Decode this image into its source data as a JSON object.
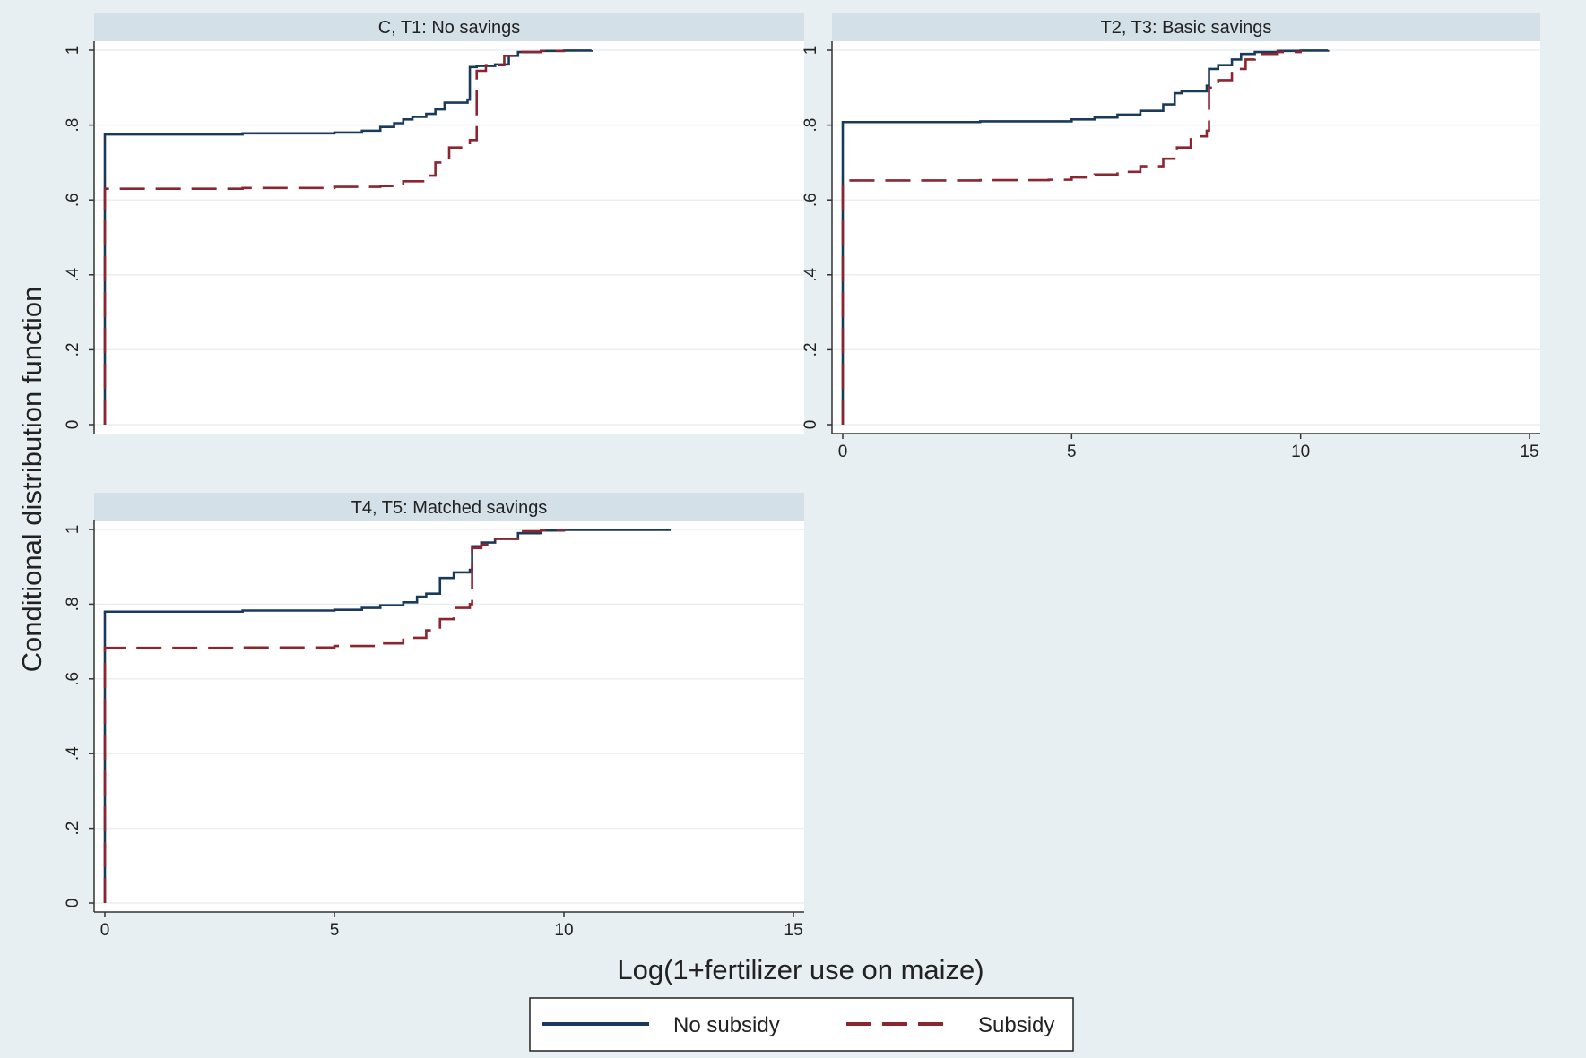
{
  "chart_data": {
    "type": "line",
    "subtype": "step-cdf",
    "ylabel": "Conditional distribution function",
    "xlabel": "Log(1+fertilizer use on maize)",
    "xlim": [
      0,
      15
    ],
    "ylim": [
      0,
      1
    ],
    "xticks": [
      0,
      5,
      10,
      15
    ],
    "yticks": [
      0,
      0.2,
      0.4,
      0.6,
      0.8,
      1
    ],
    "ytick_labels": [
      "0",
      ".2",
      ".4",
      ".6",
      ".8",
      "1"
    ],
    "grid": true,
    "legend_position": "bottom",
    "legend": [
      {
        "label": "No subsidy",
        "color": "#1a3a5c",
        "dash": "solid"
      },
      {
        "label": "Subsidy",
        "color": "#8b2530",
        "dash": "long-dash"
      }
    ],
    "panels": [
      {
        "title": "C, T1: No savings",
        "show_x_ticks": false,
        "series": [
          {
            "name": "No subsidy",
            "x": [
              0,
              0,
              3,
              5,
              5.6,
              6,
              6.3,
              6.5,
              6.7,
              7.0,
              7.2,
              7.4,
              7.9,
              7.95,
              8.1,
              8.5,
              8.8,
              9.0,
              9.5,
              10.0,
              10.6
            ],
            "y": [
              0,
              0.775,
              0.778,
              0.78,
              0.785,
              0.795,
              0.805,
              0.815,
              0.822,
              0.83,
              0.842,
              0.86,
              0.868,
              0.955,
              0.958,
              0.962,
              0.985,
              0.995,
              0.998,
              0.999,
              1.0
            ]
          },
          {
            "name": "Subsidy",
            "x": [
              0,
              0,
              3,
              5,
              6.0,
              6.5,
              7.0,
              7.2,
              7.5,
              7.95,
              8.1,
              8.3,
              8.7,
              9.0,
              9.5,
              10.0
            ],
            "y": [
              0,
              0.63,
              0.632,
              0.635,
              0.637,
              0.65,
              0.665,
              0.7,
              0.74,
              0.76,
              0.945,
              0.96,
              0.985,
              0.995,
              0.998,
              1.0
            ]
          }
        ]
      },
      {
        "title": "T2, T3: Basic savings",
        "show_x_ticks": true,
        "series": [
          {
            "name": "No subsidy",
            "x": [
              0,
              0,
              3,
              5,
              5.5,
              6.0,
              6.5,
              7.0,
              7.25,
              7.4,
              7.95,
              8.0,
              8.2,
              8.5,
              8.7,
              9.0,
              9.5,
              10.0,
              10.6
            ],
            "y": [
              0,
              0.808,
              0.81,
              0.815,
              0.82,
              0.828,
              0.838,
              0.855,
              0.885,
              0.89,
              0.905,
              0.95,
              0.96,
              0.975,
              0.99,
              0.995,
              0.998,
              0.999,
              1.0
            ]
          },
          {
            "name": "Subsidy",
            "x": [
              0,
              0,
              3,
              4.5,
              5,
              5.5,
              6.0,
              6.5,
              7.0,
              7.3,
              7.6,
              7.95,
              8.0,
              8.2,
              8.5,
              8.8,
              9.0,
              9.5,
              10.0
            ],
            "y": [
              0,
              0.652,
              0.653,
              0.654,
              0.66,
              0.668,
              0.675,
              0.69,
              0.71,
              0.74,
              0.77,
              0.785,
              0.9,
              0.92,
              0.95,
              0.975,
              0.99,
              0.995,
              1.0
            ]
          }
        ]
      },
      {
        "title": "T4, T5: Matched savings",
        "show_x_ticks": true,
        "series": [
          {
            "name": "No subsidy",
            "x": [
              0,
              0,
              3,
              5,
              5.6,
              6.0,
              6.5,
              6.8,
              7.0,
              7.3,
              7.6,
              7.95,
              8.0,
              8.2,
              8.5,
              9.0,
              9.5,
              10.0,
              12.3
            ],
            "y": [
              0,
              0.78,
              0.783,
              0.785,
              0.79,
              0.797,
              0.805,
              0.82,
              0.828,
              0.87,
              0.885,
              0.892,
              0.955,
              0.965,
              0.975,
              0.99,
              0.997,
              0.999,
              1.0
            ]
          },
          {
            "name": "Subsidy",
            "x": [
              0,
              0,
              3,
              5,
              6.0,
              6.5,
              7.0,
              7.3,
              7.6,
              7.95,
              8.0,
              8.2,
              8.5,
              9.0,
              9.5,
              10.0
            ],
            "y": [
              0,
              0.683,
              0.684,
              0.688,
              0.695,
              0.71,
              0.73,
              0.76,
              0.79,
              0.8,
              0.95,
              0.96,
              0.975,
              0.995,
              0.998,
              1.0
            ]
          }
        ]
      }
    ]
  }
}
